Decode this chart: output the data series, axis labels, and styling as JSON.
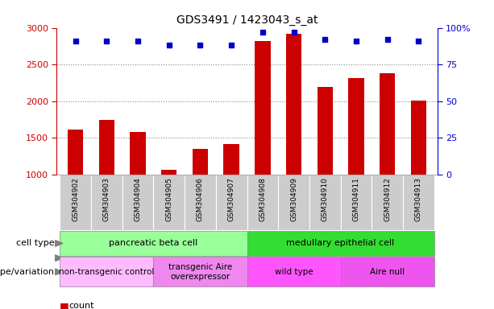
{
  "title": "GDS3491 / 1423043_s_at",
  "samples": [
    "GSM304902",
    "GSM304903",
    "GSM304904",
    "GSM304905",
    "GSM304906",
    "GSM304907",
    "GSM304908",
    "GSM304909",
    "GSM304910",
    "GSM304911",
    "GSM304912",
    "GSM304913"
  ],
  "counts": [
    1610,
    1750,
    1580,
    1065,
    1350,
    1420,
    2820,
    2920,
    2200,
    2310,
    2380,
    2010
  ],
  "percentile": [
    91,
    91,
    91,
    88,
    88,
    88,
    97,
    97,
    92,
    91,
    92,
    91
  ],
  "ylim_left": [
    1000,
    3000
  ],
  "ylim_right": [
    0,
    100
  ],
  "yticks_left": [
    1000,
    1500,
    2000,
    2500,
    3000
  ],
  "yticks_right": [
    0,
    25,
    50,
    75,
    100
  ],
  "bar_color": "#cc0000",
  "dot_color": "#0000cc",
  "cell_type_groups": [
    {
      "label": "pancreatic beta cell",
      "start": 0,
      "end": 6,
      "color": "#99ff99"
    },
    {
      "label": "medullary epithelial cell",
      "start": 6,
      "end": 12,
      "color": "#33dd33"
    }
  ],
  "genotype_groups": [
    {
      "label": "non-transgenic control",
      "start": 0,
      "end": 3,
      "color": "#ffbbff"
    },
    {
      "label": "transgenic Aire\noverexpressor",
      "start": 3,
      "end": 6,
      "color": "#ee88ee"
    },
    {
      "label": "wild type",
      "start": 6,
      "end": 9,
      "color": "#ff55ff"
    },
    {
      "label": "Aire null",
      "start": 9,
      "end": 12,
      "color": "#ee55ee"
    }
  ],
  "legend_count_color": "#cc0000",
  "legend_pct_color": "#0000cc",
  "left_axis_color": "#cc0000",
  "right_axis_color": "#0000cc",
  "bg_color": "#ffffff",
  "tick_bg_color": "#cccccc",
  "grid_color": "#888888"
}
